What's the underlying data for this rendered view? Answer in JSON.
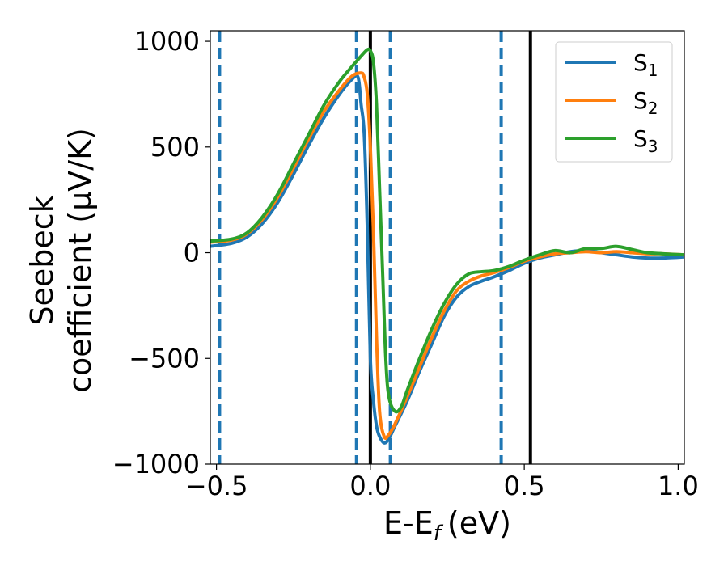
{
  "chart_data": {
    "type": "line",
    "xlabel": "E-E",
    "xlabel_sub": "f",
    "xlabel_unit": "(eV)",
    "ylabel_line1": "Seebeck",
    "ylabel_line2": "coefficient  (μV/K)",
    "xlim": [
      -0.52,
      1.02
    ],
    "ylim": [
      -1000,
      1050
    ],
    "x_ticks": [
      -0.5,
      0.0,
      0.5,
      1.0
    ],
    "x_tick_labels": [
      "−0.5",
      "0.0",
      "0.5",
      "1.0"
    ],
    "y_ticks": [
      -1000,
      -500,
      0,
      500,
      1000
    ],
    "y_tick_labels": [
      "−1000",
      "−500",
      "0",
      "500",
      "1000"
    ],
    "grid": false,
    "legend_position": "top-right",
    "series": [
      {
        "name": "S",
        "subscript": "1",
        "color": "#1f77b4",
        "points": [
          [
            -0.52,
            30
          ],
          [
            -0.45,
            45
          ],
          [
            -0.4,
            75
          ],
          [
            -0.35,
            140
          ],
          [
            -0.3,
            240
          ],
          [
            -0.25,
            370
          ],
          [
            -0.2,
            510
          ],
          [
            -0.15,
            640
          ],
          [
            -0.1,
            750
          ],
          [
            -0.06,
            820
          ],
          [
            -0.04,
            830
          ],
          [
            -0.03,
            700
          ],
          [
            -0.02,
            560
          ],
          [
            -0.01,
            120
          ],
          [
            0.0,
            -500
          ],
          [
            0.01,
            -700
          ],
          [
            0.02,
            -820
          ],
          [
            0.03,
            -870
          ],
          [
            0.045,
            -900
          ],
          [
            0.06,
            -880
          ],
          [
            0.08,
            -820
          ],
          [
            0.12,
            -700
          ],
          [
            0.16,
            -560
          ],
          [
            0.2,
            -430
          ],
          [
            0.24,
            -300
          ],
          [
            0.28,
            -210
          ],
          [
            0.32,
            -160
          ],
          [
            0.36,
            -135
          ],
          [
            0.4,
            -115
          ],
          [
            0.45,
            -85
          ],
          [
            0.5,
            -50
          ],
          [
            0.55,
            -25
          ],
          [
            0.6,
            -10
          ],
          [
            0.65,
            5
          ],
          [
            0.7,
            10
          ],
          [
            0.75,
            0
          ],
          [
            0.8,
            -10
          ],
          [
            0.85,
            -20
          ],
          [
            0.9,
            -25
          ],
          [
            0.95,
            -25
          ],
          [
            1.02,
            -20
          ]
        ]
      },
      {
        "name": "S",
        "subscript": "2",
        "color": "#ff7f0e",
        "points": [
          [
            -0.52,
            50
          ],
          [
            -0.45,
            60
          ],
          [
            -0.4,
            90
          ],
          [
            -0.35,
            160
          ],
          [
            -0.3,
            265
          ],
          [
            -0.25,
            400
          ],
          [
            -0.2,
            540
          ],
          [
            -0.15,
            670
          ],
          [
            -0.1,
            770
          ],
          [
            -0.06,
            835
          ],
          [
            -0.03,
            850
          ],
          [
            -0.02,
            830
          ],
          [
            -0.01,
            750
          ],
          [
            0.0,
            500
          ],
          [
            0.01,
            100
          ],
          [
            0.02,
            -400
          ],
          [
            0.03,
            -750
          ],
          [
            0.045,
            -870
          ],
          [
            0.06,
            -860
          ],
          [
            0.08,
            -810
          ],
          [
            0.12,
            -680
          ],
          [
            0.16,
            -540
          ],
          [
            0.2,
            -400
          ],
          [
            0.24,
            -275
          ],
          [
            0.28,
            -180
          ],
          [
            0.32,
            -135
          ],
          [
            0.36,
            -110
          ],
          [
            0.4,
            -95
          ],
          [
            0.45,
            -70
          ],
          [
            0.5,
            -40
          ],
          [
            0.55,
            -20
          ],
          [
            0.6,
            -5
          ],
          [
            0.65,
            0
          ],
          [
            0.7,
            5
          ],
          [
            0.75,
            0
          ],
          [
            0.8,
            5
          ],
          [
            0.85,
            0
          ],
          [
            0.9,
            -5
          ],
          [
            0.95,
            -5
          ],
          [
            1.02,
            -10
          ]
        ]
      },
      {
        "name": "S",
        "subscript": "3",
        "color": "#2ca02c",
        "points": [
          [
            -0.52,
            55
          ],
          [
            -0.45,
            65
          ],
          [
            -0.4,
            95
          ],
          [
            -0.35,
            170
          ],
          [
            -0.3,
            280
          ],
          [
            -0.25,
            420
          ],
          [
            -0.2,
            560
          ],
          [
            -0.15,
            700
          ],
          [
            -0.1,
            810
          ],
          [
            -0.06,
            880
          ],
          [
            -0.03,
            930
          ],
          [
            -0.01,
            960
          ],
          [
            0.0,
            955
          ],
          [
            0.01,
            900
          ],
          [
            0.02,
            700
          ],
          [
            0.03,
            300
          ],
          [
            0.04,
            -100
          ],
          [
            0.05,
            -500
          ],
          [
            0.06,
            -680
          ],
          [
            0.08,
            -750
          ],
          [
            0.1,
            -730
          ],
          [
            0.12,
            -650
          ],
          [
            0.16,
            -500
          ],
          [
            0.2,
            -360
          ],
          [
            0.24,
            -240
          ],
          [
            0.28,
            -150
          ],
          [
            0.32,
            -100
          ],
          [
            0.36,
            -90
          ],
          [
            0.4,
            -85
          ],
          [
            0.45,
            -65
          ],
          [
            0.5,
            -35
          ],
          [
            0.55,
            -10
          ],
          [
            0.6,
            10
          ],
          [
            0.65,
            0
          ],
          [
            0.7,
            20
          ],
          [
            0.75,
            20
          ],
          [
            0.8,
            30
          ],
          [
            0.85,
            15
          ],
          [
            0.9,
            0
          ],
          [
            0.95,
            -5
          ],
          [
            1.02,
            -10
          ]
        ]
      }
    ],
    "dashed_vlines": [
      -0.49,
      -0.045,
      0.065,
      0.425
    ],
    "dashed_vline_color": "#1f77b4",
    "solid_vlines": [
      0.0,
      0.52
    ],
    "solid_vline_color": "#000000"
  }
}
